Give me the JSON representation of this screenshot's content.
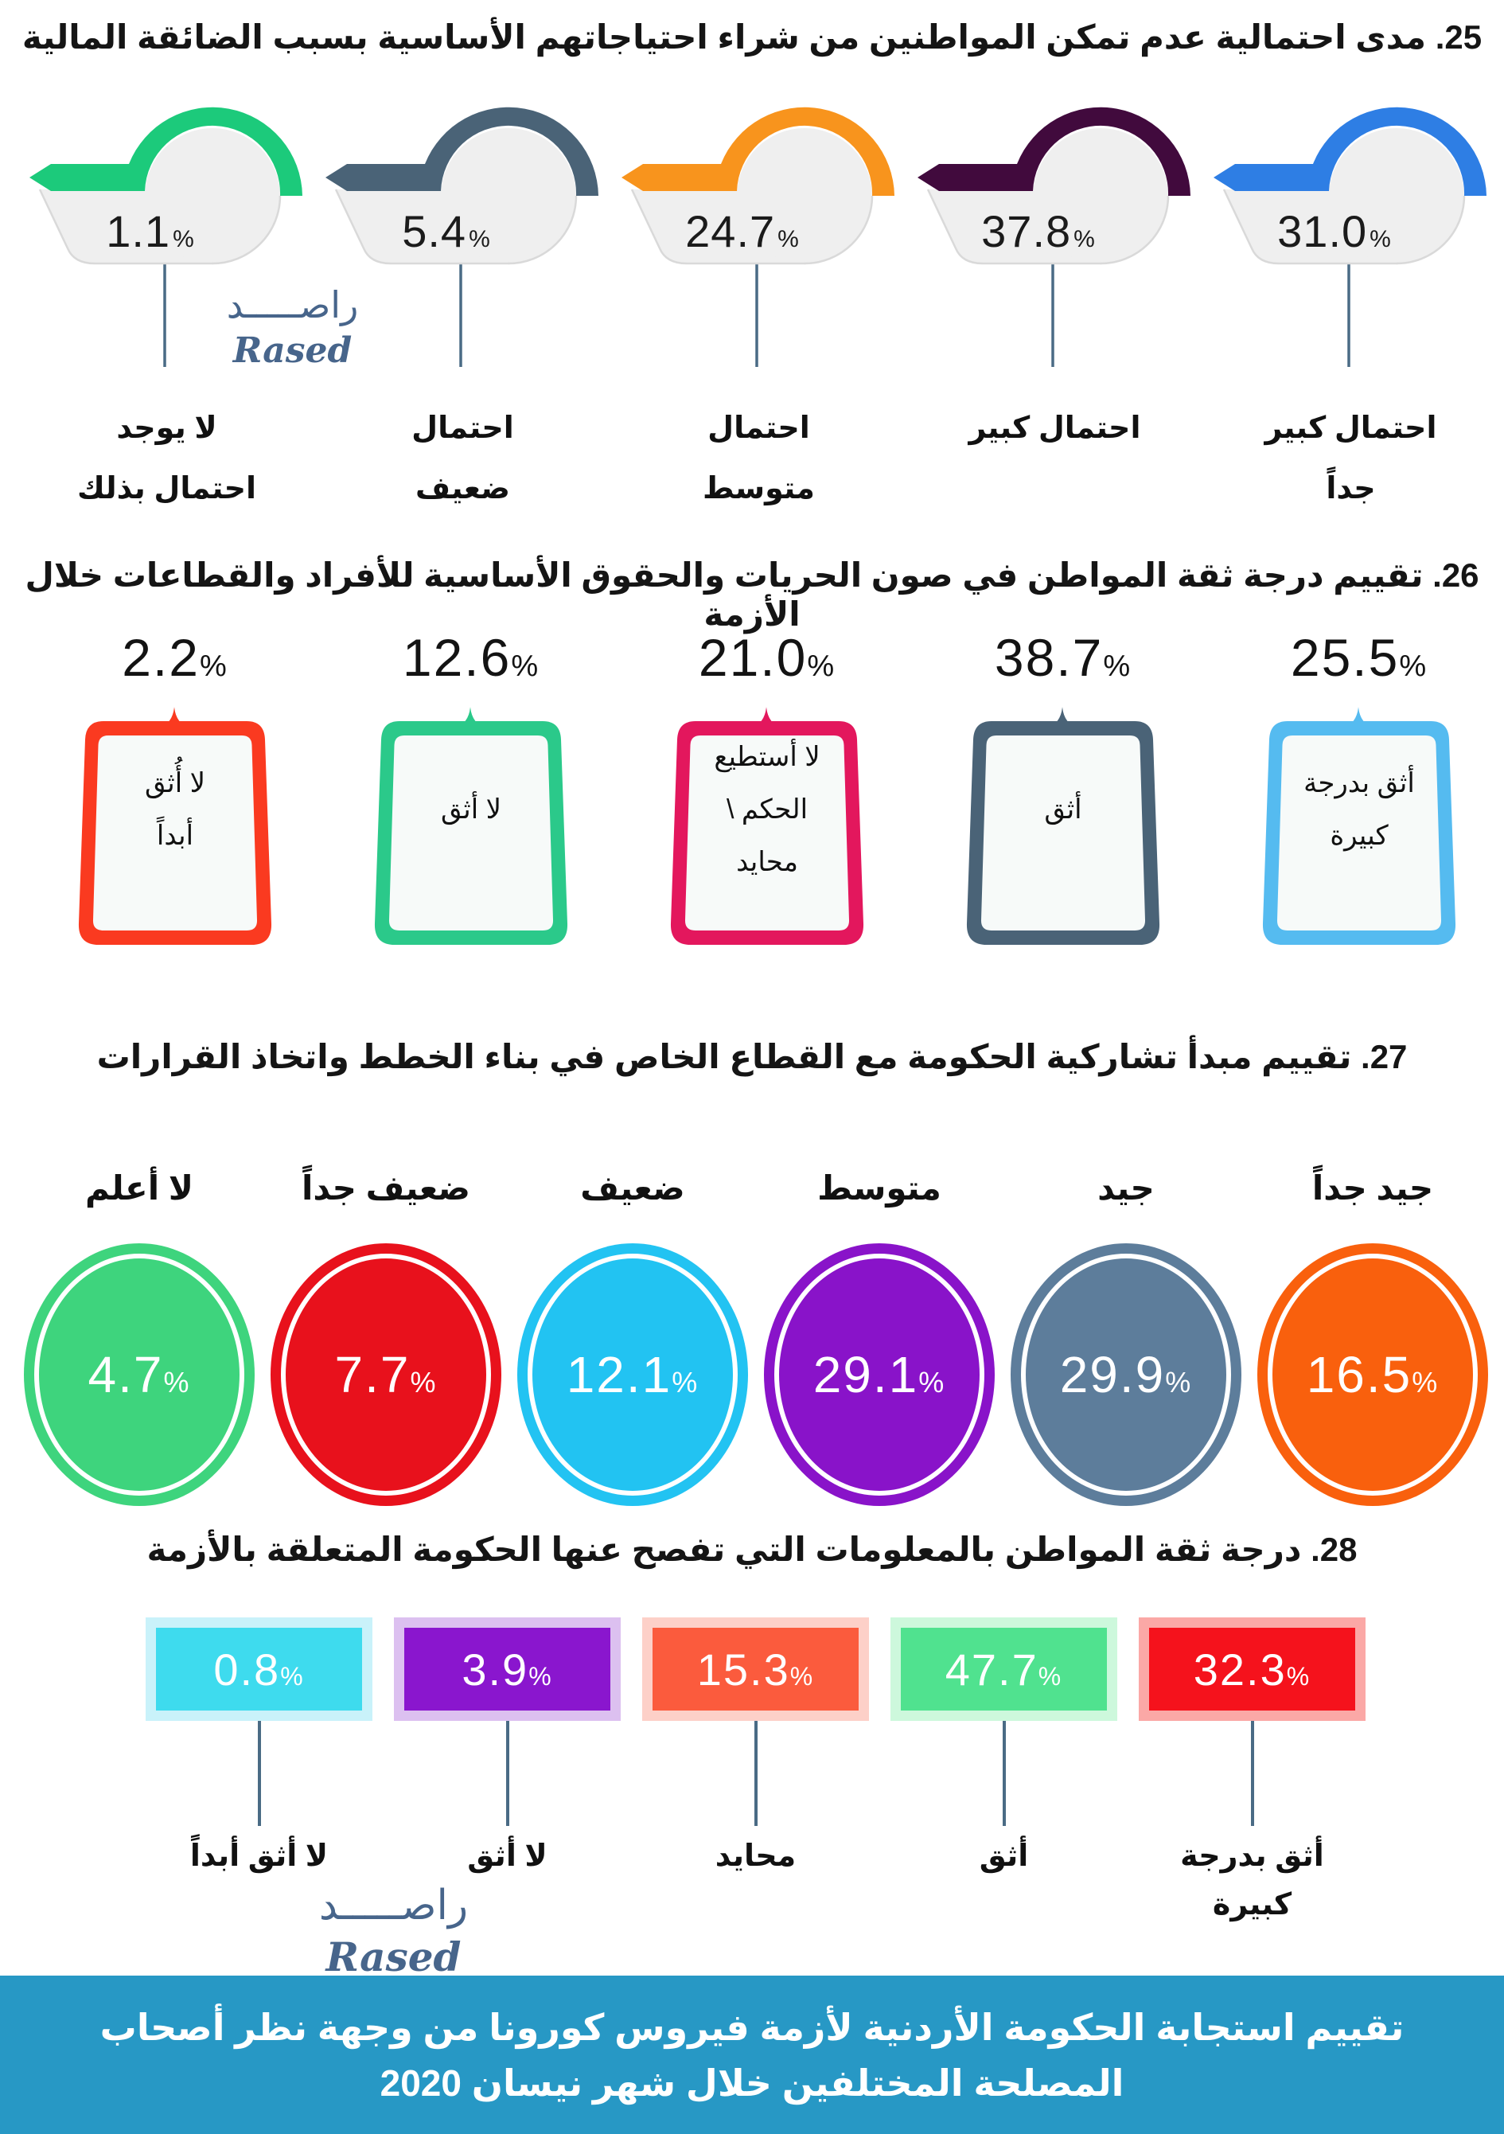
{
  "logo": {
    "arabic": "راصـــــد",
    "latin": "Rased"
  },
  "colors": {
    "tag_body": "#EFEFEF",
    "tag_border": "#D9D9D9",
    "tail_line": "#4A6B85",
    "footer_bg": "#2798C5",
    "logo_blue": "#47658B"
  },
  "sections": {
    "q25": {
      "title": "25. مدى احتمالية عدم تمكن المواطنين من شراء احتياجاتهم الأساسية بسبب الضائقة المالية",
      "items": [
        {
          "value": "1.1",
          "unit": "%",
          "color": "#1CCA7B",
          "label_lines": [
            "لا يوجد",
            "احتمال بذلك"
          ]
        },
        {
          "value": "5.4",
          "unit": "%",
          "color": "#4A6377",
          "label_lines": [
            "احتمال",
            "ضعيف"
          ]
        },
        {
          "value": "24.7",
          "unit": "%",
          "color": "#F8941D",
          "label_lines": [
            "احتمال",
            "متوسط"
          ]
        },
        {
          "value": "37.8",
          "unit": "%",
          "color": "#410A3D",
          "label_lines": [
            "احتمال كبير"
          ]
        },
        {
          "value": "31.0",
          "unit": "%",
          "color": "#2E7EE4",
          "label_lines": [
            "احتمال كبير",
            "جداً"
          ]
        }
      ]
    },
    "q26": {
      "title": "26. تقييم درجة ثقة المواطن في صون الحريات والحقوق الأساسية للأفراد والقطاعات خلال الأزمة",
      "items": [
        {
          "value": "2.2",
          "unit": "%",
          "color": "#FA3A20",
          "label_lines": [
            "لا أُثق",
            "أبداً"
          ]
        },
        {
          "value": "12.6",
          "unit": "%",
          "color": "#2BC98A",
          "label_lines": [
            "لا أثق"
          ]
        },
        {
          "value": "21.0",
          "unit": "%",
          "color": "#E3175D",
          "label_lines": [
            "لا أستطيع",
            "الحكم \\",
            "محايد"
          ]
        },
        {
          "value": "38.7",
          "unit": "%",
          "color": "#4A6377",
          "label_lines": [
            "أثق"
          ]
        },
        {
          "value": "25.5",
          "unit": "%",
          "color": "#55BBF0",
          "label_lines": [
            "أثق بدرجة",
            "كبيرة"
          ]
        }
      ]
    },
    "q27": {
      "title": "27. تقييم مبدأ تشاركية الحكومة مع القطاع الخاص في بناء الخطط واتخاذ القرارات",
      "items": [
        {
          "value": "4.7",
          "unit": "%",
          "color": "#3ED47D",
          "label": "لا أعلم"
        },
        {
          "value": "7.7",
          "unit": "%",
          "color": "#E8111C",
          "label": "ضعيف جداً"
        },
        {
          "value": "12.1",
          "unit": "%",
          "color": "#22C3F2",
          "label": "ضعيف"
        },
        {
          "value": "29.1",
          "unit": "%",
          "color": "#8913C9",
          "label": "متوسط"
        },
        {
          "value": "29.9",
          "unit": "%",
          "color": "#5D7D9B",
          "label": "جيد"
        },
        {
          "value": "16.5",
          "unit": "%",
          "color": "#F9600D",
          "label": "جيد جداً"
        }
      ]
    },
    "q28": {
      "title": "28. درجة ثقة المواطن بالمعلومات التي تفصح عنها الحكومة المتعلقة بالأزمة",
      "items": [
        {
          "value": "0.8",
          "unit": "%",
          "color": "#3EDBEE",
          "halo": "#C9F2FA",
          "label_lines": [
            "لا أثق أبداً"
          ]
        },
        {
          "value": "3.9",
          "unit": "%",
          "color": "#8A16CE",
          "halo": "#DCC0F0",
          "label_lines": [
            "لا أثق"
          ]
        },
        {
          "value": "15.3",
          "unit": "%",
          "color": "#FB5B3D",
          "halo": "#FDD0C8",
          "label_lines": [
            "محايد"
          ]
        },
        {
          "value": "47.7",
          "unit": "%",
          "color": "#50E28F",
          "halo": "#CDF8DC",
          "label_lines": [
            "أثق"
          ]
        },
        {
          "value": "32.3",
          "unit": "%",
          "color": "#F5121C",
          "halo": "#FBA8A6",
          "label_lines": [
            "أثق بدرجة",
            "كبيرة"
          ]
        }
      ]
    }
  },
  "footer": {
    "line1": "تقييم استجابة الحكومة الأردنية لأزمة فيروس كورونا من وجهة نظر أصحاب",
    "line2": "المصلحة المختلفين خلال شهر نيسان 2020"
  },
  "chart_data": [
    {
      "type": "bar",
      "title": "25. مدى احتمالية عدم تمكن المواطنين من شراء احتياجاتهم الأساسية بسبب الضائقة المالية",
      "categories": [
        "احتمال كبير جداً",
        "احتمال كبير",
        "احتمال متوسط",
        "احتمال ضعيف",
        "لا يوجد احتمال بذلك"
      ],
      "values": [
        31.0,
        37.8,
        24.7,
        5.4,
        1.1
      ],
      "unit": "%"
    },
    {
      "type": "bar",
      "title": "26. تقييم درجة ثقة المواطن في صون الحريات والحقوق الأساسية للأفراد والقطاعات خلال الأزمة",
      "categories": [
        "أثق بدرجة كبيرة",
        "أثق",
        "لا أستطيع الحكم \\ محايد",
        "لا أثق",
        "لا أثق أبداً"
      ],
      "values": [
        25.5,
        38.7,
        21.0,
        12.6,
        2.2
      ],
      "unit": "%"
    },
    {
      "type": "bar",
      "title": "27. تقييم مبدأ تشاركية الحكومة مع القطاع الخاص في بناء الخطط واتخاذ القرارات",
      "categories": [
        "جيد جداً",
        "جيد",
        "متوسط",
        "ضعيف",
        "ضعيف جداً",
        "لا أعلم"
      ],
      "values": [
        16.5,
        29.9,
        29.1,
        12.1,
        7.7,
        4.7
      ],
      "unit": "%"
    },
    {
      "type": "bar",
      "title": "28. درجة ثقة المواطن بالمعلومات التي تفصح عنها الحكومة المتعلقة بالأزمة",
      "categories": [
        "أثق بدرجة كبيرة",
        "أثق",
        "محايد",
        "لا أثق",
        "لا أثق أبداً"
      ],
      "values": [
        32.3,
        47.7,
        15.3,
        3.9,
        0.8
      ],
      "unit": "%"
    }
  ]
}
